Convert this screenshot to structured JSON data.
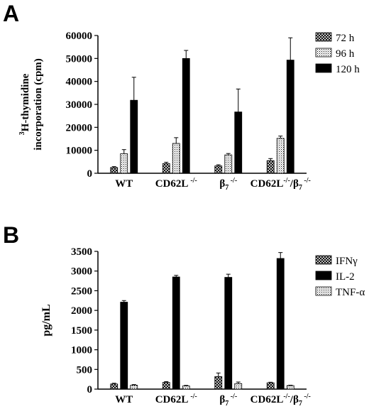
{
  "panels": {
    "a": {
      "letter": "A"
    },
    "b": {
      "letter": "B"
    }
  },
  "chart_data": [
    {
      "type": "bar",
      "panel": "A",
      "ylabel_lines": [
        "H-thymidine",
        "incorporation (cpm)"
      ],
      "ylabel_superscript": "3",
      "ylim": [
        0,
        60000
      ],
      "yticks": [
        0,
        10000,
        20000,
        30000,
        40000,
        50000,
        60000
      ],
      "ytick_labels": [
        "0",
        "10000",
        "20000",
        "30000",
        "40000",
        "50000",
        "60000"
      ],
      "categories": [
        {
          "base": "WT",
          "sup": "",
          "sub": ""
        },
        {
          "base": "CD62L ",
          "sup": "-/-",
          "sub": ""
        },
        {
          "base": "β",
          "sub": "7",
          "sup": " -/-"
        },
        {
          "base": "CD62L",
          "sup": "-/-",
          "mid": "/β",
          "sub2": "7",
          "sup2": " -/-"
        }
      ],
      "series": [
        {
          "name": "72 h",
          "pattern": "crosshatch",
          "values": [
            2500,
            4200,
            3200,
            5500
          ],
          "errors": [
            400,
            600,
            500,
            900
          ]
        },
        {
          "name": "96 h",
          "pattern": "dots",
          "values": [
            8500,
            13000,
            8000,
            15200
          ],
          "errors": [
            1800,
            2500,
            600,
            1000
          ]
        },
        {
          "name": "120 h",
          "pattern": "solid",
          "values": [
            31800,
            50000,
            26700,
            49300
          ],
          "errors": [
            10000,
            3500,
            10000,
            9700
          ]
        }
      ],
      "legend_position": "top-right"
    },
    {
      "type": "bar",
      "panel": "B",
      "ylabel": "pg/mL",
      "ylim": [
        0,
        3500
      ],
      "yticks": [
        0,
        500,
        1000,
        1500,
        2000,
        2500,
        3000,
        3500
      ],
      "ytick_labels": [
        "0",
        "500",
        "1000",
        "1500",
        "2000",
        "2500",
        "3000",
        "3500"
      ],
      "categories": [
        {
          "base": "WT",
          "sup": "",
          "sub": ""
        },
        {
          "base": "CD62L ",
          "sup": "-/-",
          "sub": ""
        },
        {
          "base": "β",
          "sub": "7",
          "sup": " -/-"
        },
        {
          "base": "CD62L",
          "sup": "-/-",
          "mid": "/β",
          "sub2": "7",
          "sup2": " -/-"
        }
      ],
      "series": [
        {
          "name": "IFNγ",
          "pattern": "crosshatch",
          "values": [
            130,
            170,
            320,
            160
          ],
          "errors": [
            20,
            20,
            90,
            15
          ]
        },
        {
          "name": "IL-2",
          "pattern": "solid",
          "values": [
            2210,
            2850,
            2840,
            3320
          ],
          "errors": [
            40,
            40,
            80,
            150
          ]
        },
        {
          "name": "TNF-α",
          "pattern": "dots",
          "values": [
            100,
            80,
            140,
            90
          ],
          "errors": [
            15,
            15,
            40,
            10
          ]
        }
      ],
      "legend_position": "top-right"
    }
  ]
}
